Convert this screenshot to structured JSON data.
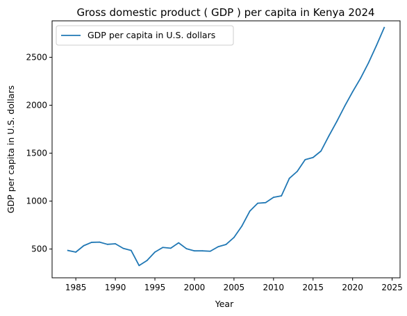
{
  "chart_data": {
    "type": "line",
    "title": "Gross domestic product ( GDP ) per capita in Kenya 2024",
    "xlabel": "Year",
    "ylabel": "GDP per capita in U.S. dollars",
    "xlim": [
      1982,
      2026
    ],
    "ylim": [
      200,
      2880
    ],
    "xticks": [
      1985,
      1990,
      1995,
      2000,
      2005,
      2010,
      2015,
      2020,
      2025
    ],
    "yticks": [
      500,
      1000,
      1500,
      2000,
      2500
    ],
    "grid": false,
    "legend_position": "top-left",
    "colors": {
      "line": "#1f77b4"
    },
    "series": [
      {
        "name": "GDP per capita in U.S. dollars",
        "x": [
          1984,
          1985,
          1986,
          1987,
          1988,
          1989,
          1990,
          1991,
          1992,
          1993,
          1994,
          1995,
          1996,
          1997,
          1998,
          1999,
          2000,
          2001,
          2002,
          2003,
          2004,
          2005,
          2006,
          2007,
          2008,
          2009,
          2010,
          2011,
          2012,
          2013,
          2014,
          2015,
          2016,
          2017,
          2018,
          2019,
          2020,
          2021,
          2022,
          2023,
          2024
        ],
        "values": [
          485,
          468,
          535,
          570,
          572,
          549,
          555,
          507,
          485,
          328,
          380,
          468,
          517,
          509,
          565,
          503,
          481,
          481,
          477,
          524,
          548,
          621,
          740,
          895,
          978,
          984,
          1039,
          1055,
          1237,
          1310,
          1432,
          1455,
          1522,
          1680,
          1830,
          1990,
          2140,
          2280,
          2440,
          2620,
          2810
        ]
      }
    ]
  }
}
